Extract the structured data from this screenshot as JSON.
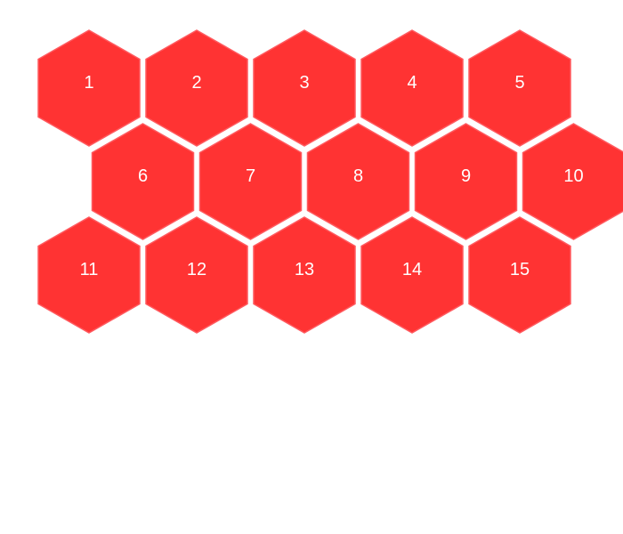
{
  "colors": {
    "hex_fill": "#ff3333",
    "hex_stroke": "#ff5a5f",
    "label": "#ffffff",
    "background": "#ffffff"
  },
  "hexagons": [
    {
      "label": "1"
    },
    {
      "label": "2"
    },
    {
      "label": "3"
    },
    {
      "label": "4"
    },
    {
      "label": "5"
    },
    {
      "label": "6"
    },
    {
      "label": "7"
    },
    {
      "label": "8"
    },
    {
      "label": "9"
    },
    {
      "label": "10"
    },
    {
      "label": "11"
    },
    {
      "label": "12"
    },
    {
      "label": "13"
    },
    {
      "label": "14"
    },
    {
      "label": "15"
    }
  ]
}
